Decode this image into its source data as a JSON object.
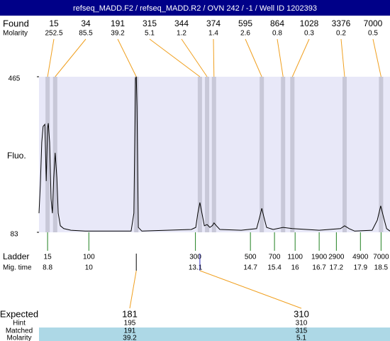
{
  "title": "refseq_MADD.F2 / refseq_MADD.R2 / OVN 242 / -1 / Well ID 1202393",
  "found": {
    "label": "Found",
    "molarity_label": "Molarity",
    "peaks": [
      {
        "size": 15,
        "molarity": 252.5,
        "time": 8.8
      },
      {
        "size": 34,
        "molarity": 85.5,
        "time": 9.02
      },
      {
        "size": 191,
        "molarity": 39.2,
        "time": 11.38
      },
      {
        "size": 315,
        "molarity": 5.1,
        "time": 13.23
      },
      {
        "size": 344,
        "molarity": 1.2,
        "time": 13.44
      },
      {
        "size": 374,
        "molarity": 1.4,
        "time": 13.64
      },
      {
        "size": 595,
        "molarity": 2.6,
        "time": 15.03
      },
      {
        "size": 864,
        "molarity": 0.8,
        "time": 15.65
      },
      {
        "size": 1028,
        "molarity": 0.3,
        "time": 15.92
      },
      {
        "size": 3376,
        "molarity": 0.2,
        "time": 17.44
      },
      {
        "size": 7000,
        "molarity": 0.5,
        "time": 18.5
      }
    ]
  },
  "chart_data": {
    "type": "line",
    "y_label": "Fluo.",
    "xlim": [
      8.55,
      18.76
    ],
    "ylim": [
      83,
      465
    ],
    "yticks": [
      465,
      83
    ],
    "x": [
      8.55,
      8.59,
      8.63,
      8.67,
      8.72,
      8.76,
      8.8,
      8.82,
      8.86,
      8.9,
      8.94,
      8.98,
      9.02,
      9.07,
      9.11,
      9.17,
      9.27,
      9.48,
      9.89,
      10.51,
      11.23,
      11.31,
      11.36,
      11.38,
      11.4,
      11.44,
      11.54,
      12.98,
      13.11,
      13.17,
      13.23,
      13.29,
      13.36,
      13.44,
      13.52,
      13.6,
      13.64,
      13.71,
      13.81,
      14.43,
      14.88,
      14.97,
      15.03,
      15.09,
      15.17,
      15.36,
      15.65,
      15.92,
      16.7,
      17.32,
      17.44,
      17.57,
      17.73,
      18.24,
      18.39,
      18.49,
      18.57,
      18.66,
      18.76
    ],
    "series": [
      {
        "color": "#000000",
        "values": [
          130,
          200,
          304,
          343,
          348,
          209,
          339,
          351,
          304,
          165,
          130,
          217,
          278,
          217,
          130,
          99,
          92,
          88,
          86,
          86,
          86,
          130,
          461,
          465,
          392,
          95,
          86,
          90,
          95,
          130,
          156,
          130,
          99,
          102,
          95,
          100,
          106,
          99,
          90,
          88,
          92,
          121,
          142,
          121,
          95,
          90,
          95,
          92,
          88,
          92,
          99,
          92,
          86,
          88,
          113,
          148,
          121,
          92,
          86
        ]
      }
    ]
  },
  "ladder": {
    "label": "Ladder",
    "time_label": "Mig. time",
    "sizes": [
      15,
      100,
      300,
      500,
      700,
      1100,
      1900,
      2900,
      4900,
      7000
    ],
    "times": [
      8.8,
      10,
      13.1,
      14.7,
      15.4,
      16,
      16.7,
      17.2,
      17.9,
      18.5
    ]
  },
  "expected": {
    "row_labels": [
      "Expected",
      "Hint",
      "Matched",
      "Molarity"
    ],
    "columns": [
      {
        "expected": 181,
        "hint": 195,
        "matched": 191,
        "molarity": 39.2
      },
      {
        "expected": 310,
        "hint": 310,
        "matched": 315,
        "molarity": 5.1
      }
    ]
  }
}
